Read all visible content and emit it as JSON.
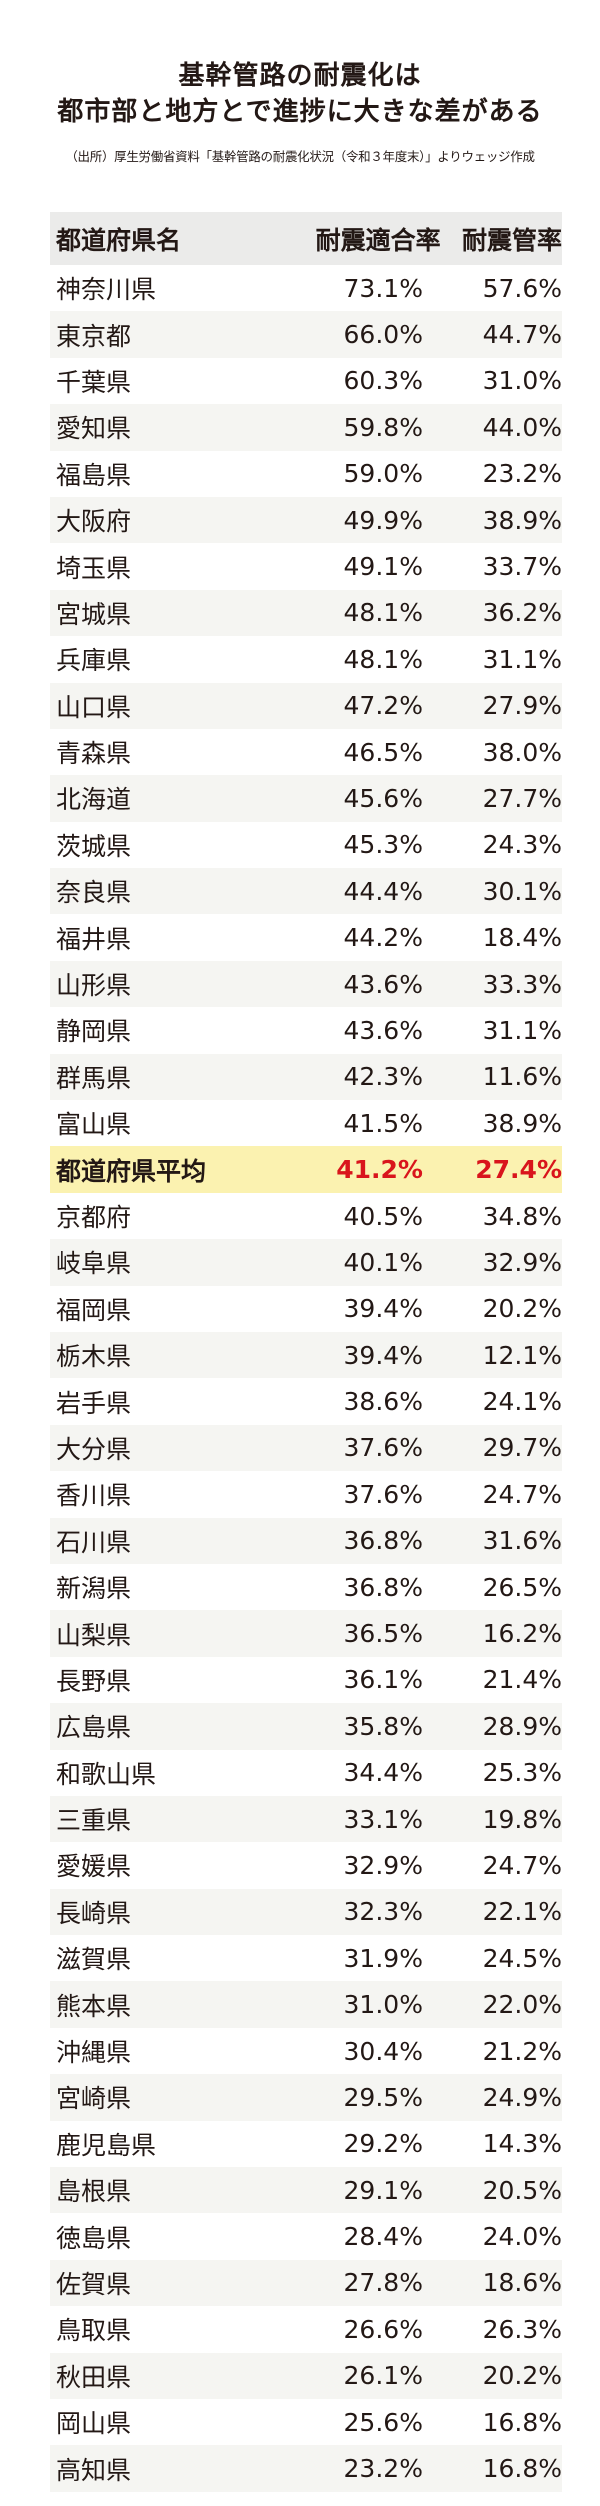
{
  "title_line1": "基幹管路の耐震化は",
  "title_line2": "都市部と地方とで進捗に大きな差がある",
  "source": "（出所）厚生労働省資料「基幹管路の耐震化状況（令和３年度末）」よりウェッジ作成",
  "colors": {
    "header_bg": "#ebebea",
    "stripe_bg": "#f5f5f2",
    "average_bg": "#fbf2b0",
    "average_text": "#d9151c"
  },
  "chart_data": {
    "type": "table",
    "columns": [
      "都道府県名",
      "耐震適合率",
      "耐震管率"
    ],
    "rows": [
      [
        "神奈川県",
        "73.1%",
        "57.6%"
      ],
      [
        "東京都",
        "66.0%",
        "44.7%"
      ],
      [
        "千葉県",
        "60.3%",
        "31.0%"
      ],
      [
        "愛知県",
        "59.8%",
        "44.0%"
      ],
      [
        "福島県",
        "59.0%",
        "23.2%"
      ],
      [
        "大阪府",
        "49.9%",
        "38.9%"
      ],
      [
        "埼玉県",
        "49.1%",
        "33.7%"
      ],
      [
        "宮城県",
        "48.1%",
        "36.2%"
      ],
      [
        "兵庫県",
        "48.1%",
        "31.1%"
      ],
      [
        "山口県",
        "47.2%",
        "27.9%"
      ],
      [
        "青森県",
        "46.5%",
        "38.0%"
      ],
      [
        "北海道",
        "45.6%",
        "27.7%"
      ],
      [
        "茨城県",
        "45.3%",
        "24.3%"
      ],
      [
        "奈良県",
        "44.4%",
        "30.1%"
      ],
      [
        "福井県",
        "44.2%",
        "18.4%"
      ],
      [
        "山形県",
        "43.6%",
        "33.3%"
      ],
      [
        "静岡県",
        "43.6%",
        "31.1%"
      ],
      [
        "群馬県",
        "42.3%",
        "11.6%"
      ],
      [
        "富山県",
        "41.5%",
        "38.9%"
      ],
      [
        "都道府県平均",
        "41.2%",
        "27.4%"
      ],
      [
        "京都府",
        "40.5%",
        "34.8%"
      ],
      [
        "岐阜県",
        "40.1%",
        "32.9%"
      ],
      [
        "福岡県",
        "39.4%",
        "20.2%"
      ],
      [
        "栃木県",
        "39.4%",
        "12.1%"
      ],
      [
        "岩手県",
        "38.6%",
        "24.1%"
      ],
      [
        "大分県",
        "37.6%",
        "29.7%"
      ],
      [
        "香川県",
        "37.6%",
        "24.7%"
      ],
      [
        "石川県",
        "36.8%",
        "31.6%"
      ],
      [
        "新潟県",
        "36.8%",
        "26.5%"
      ],
      [
        "山梨県",
        "36.5%",
        "16.2%"
      ],
      [
        "長野県",
        "36.1%",
        "21.4%"
      ],
      [
        "広島県",
        "35.8%",
        "28.9%"
      ],
      [
        "和歌山県",
        "34.4%",
        "25.3%"
      ],
      [
        "三重県",
        "33.1%",
        "19.8%"
      ],
      [
        "愛媛県",
        "32.9%",
        "24.7%"
      ],
      [
        "長崎県",
        "32.3%",
        "22.1%"
      ],
      [
        "滋賀県",
        "31.9%",
        "24.5%"
      ],
      [
        "熊本県",
        "31.0%",
        "22.0%"
      ],
      [
        "沖縄県",
        "30.4%",
        "21.2%"
      ],
      [
        "宮崎県",
        "29.5%",
        "24.9%"
      ],
      [
        "鹿児島県",
        "29.2%",
        "14.3%"
      ],
      [
        "島根県",
        "29.1%",
        "20.5%"
      ],
      [
        "徳島県",
        "28.4%",
        "24.0%"
      ],
      [
        "佐賀県",
        "27.8%",
        "18.6%"
      ],
      [
        "鳥取県",
        "26.6%",
        "26.3%"
      ],
      [
        "秋田県",
        "26.1%",
        "20.2%"
      ],
      [
        "岡山県",
        "25.6%",
        "16.8%"
      ],
      [
        "高知県",
        "23.2%",
        "16.8%"
      ]
    ],
    "highlight_row": "都道府県平均"
  }
}
